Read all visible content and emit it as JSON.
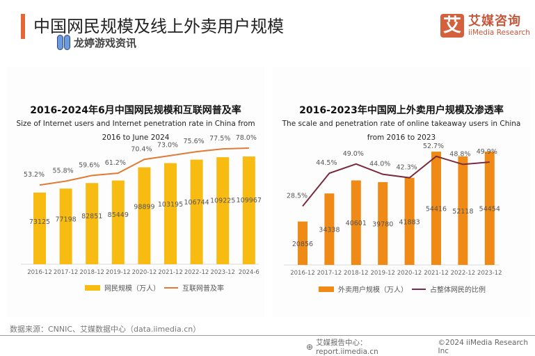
{
  "page": {
    "title": "中国网民规模及线上外卖用户规模",
    "accent_color": "#e4673a",
    "watermark": "龙婷游戏资讯"
  },
  "logo": {
    "mark": "艾",
    "name_cn": "艾媒咨询",
    "name_en": "iiMedia Research"
  },
  "source": "数据来源：CNNIC、艾媒数据中心（data.iimedia.cn）",
  "footer": {
    "report_center": "艾媒报告中心：report.iimedia.cn",
    "copyright": "©2024  iiMedia Research  Inc"
  },
  "chart_data": [
    {
      "type": "bar",
      "title": "2016-2024年6月中国网民规模和互联网普及率",
      "subtitle_line1": "Size of Internet users and Internet penetration rate in China from",
      "subtitle_line2": "2016 to June 2024",
      "categories": [
        "2016-12",
        "2017-12",
        "2018-12",
        "2019-12",
        "2020-12",
        "2021-12",
        "2022-12",
        "2023-12",
        "2024-6"
      ],
      "series": [
        {
          "name": "网民规模（万人）",
          "type": "bar",
          "color": "#f8bb12",
          "values": [
            73125,
            77198,
            82851,
            85449,
            98899,
            103195,
            106744,
            109225,
            109967
          ],
          "labels": [
            "73125",
            "77198",
            "82851",
            "85449",
            "98899",
            "103195",
            "106744",
            "109225",
            "109967"
          ]
        },
        {
          "name": "互联网普及率",
          "type": "line",
          "color": "#e07a35",
          "values": [
            53.2,
            55.8,
            59.6,
            61.2,
            70.4,
            73.0,
            75.6,
            77.5,
            78.0
          ],
          "labels": [
            "53.2%",
            "55.8%",
            "59.6%",
            "61.2%",
            "70.4%",
            "73.0%",
            "75.6%",
            "77.5%",
            "78.0%"
          ]
        }
      ],
      "bar_axis_max": 110000,
      "line_axis_max": 78.0,
      "legend_position": "bottom",
      "grid": false
    },
    {
      "type": "bar",
      "title": "2016-2023年中国网上外卖用户规模及渗透率",
      "subtitle_line1": "The scale and penetration rate of online takeaway users in China",
      "subtitle_line2": "from 2016 to 2023",
      "categories": [
        "2016-12",
        "2017-12",
        "2018-12",
        "2019-12",
        "2020-12",
        "2021-12",
        "2022-12",
        "2023-12"
      ],
      "series": [
        {
          "name": "外卖用户规模（万人）",
          "type": "bar",
          "color": "#ef8a17",
          "values": [
            20856,
            34338,
            40601,
            39780,
            41883,
            54416,
            52118,
            54454
          ],
          "labels": [
            "20856",
            "34338",
            "40601",
            "39780",
            "41883",
            "54416",
            "52118",
            "54454"
          ]
        },
        {
          "name": "占整体网民的比例",
          "type": "line",
          "color": "#7a2a3d",
          "values": [
            28.5,
            44.5,
            49.0,
            44.0,
            42.3,
            52.7,
            48.8,
            49.9
          ],
          "labels": [
            "28.5%",
            "44.5%",
            "49.0%",
            "44.0%",
            "42.3%",
            "52.7%",
            "48.8%",
            "49.9%"
          ]
        }
      ],
      "bar_axis_max": 54454,
      "line_axis_max": 54.0,
      "legend_position": "bottom",
      "grid": false
    }
  ]
}
